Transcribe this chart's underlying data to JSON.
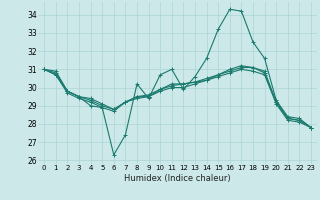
{
  "xlabel": "Humidex (Indice chaleur)",
  "xlim": [
    -0.5,
    23.5
  ],
  "ylim": [
    25.8,
    34.7
  ],
  "yticks": [
    26,
    27,
    28,
    29,
    30,
    31,
    32,
    33,
    34
  ],
  "xticks": [
    0,
    1,
    2,
    3,
    4,
    5,
    6,
    7,
    8,
    9,
    10,
    11,
    12,
    13,
    14,
    15,
    16,
    17,
    18,
    19,
    20,
    21,
    22,
    23
  ],
  "bg_color": "#cce8e8",
  "line_color": "#1a7a6e",
  "grid_color": "#aad4d4",
  "series": [
    [
      31.0,
      30.9,
      29.8,
      29.5,
      29.0,
      28.9,
      26.3,
      27.4,
      30.2,
      29.4,
      30.7,
      31.0,
      29.9,
      30.6,
      31.6,
      33.2,
      34.3,
      34.2,
      32.5,
      31.6,
      29.3,
      28.4,
      28.3,
      27.8
    ],
    [
      31.0,
      30.8,
      29.8,
      29.5,
      29.4,
      29.1,
      28.8,
      29.2,
      29.5,
      29.6,
      29.9,
      30.2,
      30.2,
      30.3,
      30.5,
      30.7,
      31.0,
      31.2,
      31.1,
      30.9,
      29.2,
      28.3,
      28.2,
      27.8
    ],
    [
      31.0,
      30.7,
      29.8,
      29.5,
      29.3,
      29.0,
      28.8,
      29.2,
      29.5,
      29.5,
      29.9,
      30.1,
      30.2,
      30.3,
      30.4,
      30.7,
      30.9,
      31.1,
      31.1,
      30.8,
      29.2,
      28.3,
      28.2,
      27.8
    ],
    [
      31.0,
      30.7,
      29.7,
      29.4,
      29.2,
      28.9,
      28.7,
      29.2,
      29.4,
      29.5,
      29.8,
      30.0,
      30.0,
      30.2,
      30.4,
      30.6,
      30.8,
      31.0,
      30.9,
      30.7,
      29.1,
      28.2,
      28.1,
      27.8
    ]
  ]
}
